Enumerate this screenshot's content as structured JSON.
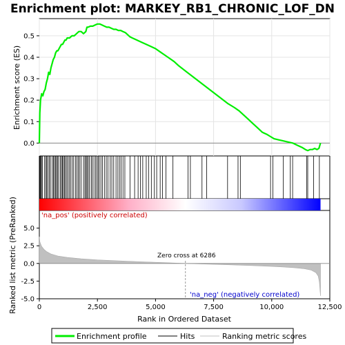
{
  "chart_data": {
    "type": "line",
    "title": "Enrichment plot: MARKEY_RB1_CHRONIC_LOF_DN",
    "xlabel": "Rank in Ordered Dataset",
    "es_panel": {
      "ylabel": "Enrichment score (ES)",
      "ylim": [
        -0.06,
        0.58
      ],
      "yticks": [
        "0.0",
        "0.1",
        "0.2",
        "0.3",
        "0.4",
        "0.5"
      ],
      "ytick_values": [
        0.0,
        0.1,
        0.2,
        0.3,
        0.4,
        0.5
      ],
      "series": [
        {
          "name": "Enrichment profile",
          "color": "#00ee00",
          "x": [
            0,
            20,
            50,
            100,
            150,
            200,
            250,
            300,
            350,
            400,
            450,
            500,
            550,
            600,
            650,
            700,
            750,
            800,
            850,
            900,
            950,
            1000,
            1050,
            1100,
            1150,
            1200,
            1300,
            1400,
            1500,
            1600,
            1700,
            1800,
            1900,
            2000,
            2050,
            2100,
            2200,
            2300,
            2400,
            2500,
            2600,
            2700,
            2800,
            2900,
            3000,
            3100,
            3200,
            3300,
            3400,
            3500,
            3600,
            3700,
            3800,
            3900,
            4000,
            4200,
            4400,
            4600,
            4800,
            5000,
            5200,
            5400,
            5600,
            5800,
            6000,
            6300,
            6600,
            6900,
            7200,
            7500,
            7800,
            8100,
            8400,
            8600,
            8800,
            9000,
            9200,
            9400,
            9600,
            9800,
            9950,
            10100,
            10300,
            10500,
            10700,
            10900,
            11100,
            11300,
            11450,
            11550,
            11650,
            11750,
            11850,
            11950,
            12030,
            12100
          ],
          "y": [
            0.0,
            0.14,
            0.2,
            0.23,
            0.22,
            0.24,
            0.25,
            0.28,
            0.3,
            0.33,
            0.32,
            0.35,
            0.37,
            0.39,
            0.4,
            0.42,
            0.43,
            0.43,
            0.44,
            0.45,
            0.46,
            0.46,
            0.47,
            0.48,
            0.48,
            0.49,
            0.49,
            0.5,
            0.5,
            0.51,
            0.52,
            0.52,
            0.51,
            0.52,
            0.54,
            0.54,
            0.545,
            0.545,
            0.55,
            0.555,
            0.555,
            0.55,
            0.545,
            0.54,
            0.54,
            0.535,
            0.53,
            0.53,
            0.525,
            0.525,
            0.52,
            0.515,
            0.505,
            0.495,
            0.49,
            0.48,
            0.47,
            0.46,
            0.45,
            0.44,
            0.425,
            0.41,
            0.395,
            0.38,
            0.36,
            0.335,
            0.31,
            0.285,
            0.26,
            0.235,
            0.21,
            0.185,
            0.165,
            0.15,
            0.13,
            0.11,
            0.09,
            0.07,
            0.05,
            0.04,
            0.03,
            0.02,
            0.015,
            0.01,
            0.005,
            0.0,
            -0.01,
            -0.02,
            -0.03,
            -0.035,
            -0.03,
            -0.03,
            -0.025,
            -0.03,
            -0.025,
            0.0
          ]
        }
      ]
    },
    "hits": {
      "name": "Hits",
      "color": "#000000",
      "ranks": [
        10,
        30,
        60,
        90,
        130,
        220,
        280,
        320,
        370,
        430,
        480,
        560,
        610,
        650,
        700,
        740,
        780,
        830,
        900,
        950,
        990,
        1030,
        1080,
        1120,
        1180,
        1230,
        1290,
        1350,
        1420,
        1480,
        1560,
        1620,
        1680,
        1730,
        1800,
        1900,
        1960,
        2010,
        2050,
        2100,
        2150,
        2230,
        2280,
        2350,
        2420,
        2480,
        2530,
        2580,
        2650,
        2720,
        2800,
        2880,
        2950,
        3050,
        3120,
        3200,
        3300,
        3380,
        3450,
        3520,
        3600,
        3680,
        3900,
        4100,
        4250,
        4350,
        4450,
        4600,
        4700,
        4820,
        4950,
        5050,
        5200,
        5300,
        5450,
        5750,
        6400,
        6500,
        7000,
        7200,
        8100,
        8550,
        8650,
        9950,
        10050,
        10500,
        10800,
        10900,
        11500,
        11550,
        11800,
        12050
      ]
    },
    "heat_bar": {
      "colors_low_to_high_rank": [
        "#ff0000",
        "#ffb0c8",
        "#ffffff",
        "#c8c8ff",
        "#0000ff"
      ],
      "split_rank": 6286
    },
    "metric_panel": {
      "name": "Ranking metric scores",
      "color": "#c0c0c0",
      "ylabel": "Ranked list metric (PreRanked)",
      "ylim": [
        -5.0,
        7.5
      ],
      "yticks": [
        "5.0",
        "2.5",
        "0.0",
        "-2.5",
        "-5.0"
      ],
      "ytick_values": [
        5.0,
        2.5,
        0.0,
        -2.5,
        -5.0
      ],
      "x": [
        0,
        20,
        50,
        100,
        200,
        300,
        500,
        800,
        1200,
        1800,
        2500,
        3500,
        4500,
        5500,
        6286,
        7000,
        8000,
        9000,
        10000,
        10500,
        11000,
        11400,
        11700,
        11900,
        12000,
        12050,
        12100
      ],
      "y": [
        3.8,
        3.1,
        2.8,
        2.4,
        2.0,
        1.7,
        1.35,
        1.05,
        0.85,
        0.65,
        0.5,
        0.35,
        0.22,
        0.1,
        0.0,
        -0.08,
        -0.18,
        -0.28,
        -0.42,
        -0.5,
        -0.62,
        -0.75,
        -0.95,
        -1.3,
        -1.8,
        -2.6,
        -4.6
      ],
      "pos_label": "'na_pos' (positively correlated)",
      "neg_label": "'na_neg' (negatively correlated)",
      "zero_cross_label": "Zero cross at 6286",
      "zero_cross": 6286
    },
    "xlim": [
      0,
      12500
    ],
    "xticks": [
      "0",
      "2,500",
      "5,000",
      "7,500",
      "10,000",
      "12,500"
    ],
    "xtick_values": [
      0,
      2500,
      5000,
      7500,
      10000,
      12500
    ],
    "legend": {
      "placement": "bottom",
      "entries": [
        "Enrichment profile",
        "Hits",
        "Ranking metric scores"
      ]
    }
  }
}
